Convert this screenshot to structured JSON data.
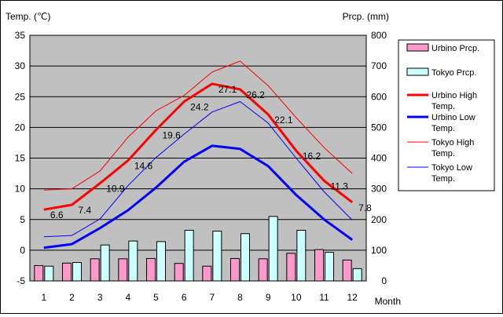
{
  "chart_data": {
    "type": "combo-bar-line",
    "categories": [
      "1",
      "2",
      "3",
      "4",
      "5",
      "6",
      "7",
      "8",
      "9",
      "10",
      "11",
      "12"
    ],
    "xlabel": "Month",
    "left_axis": {
      "label": "Temp. (℃)",
      "min": -5,
      "max": 35,
      "step": 5
    },
    "right_axis": {
      "label": "Prcp. (mm)",
      "min": 0,
      "max": 800,
      "step": 100
    },
    "bar_series": [
      {
        "name": "Urbino Prcp.",
        "color": "#ff99cc",
        "values": [
          50,
          58,
          72,
          72,
          73,
          57,
          48,
          73,
          72,
          90,
          102,
          68
        ]
      },
      {
        "name": "Tokyo Prcp.",
        "color": "#ccffff",
        "values": [
          48,
          60,
          117,
          130,
          128,
          165,
          162,
          154,
          210,
          165,
          93,
          40
        ]
      }
    ],
    "line_series": [
      {
        "name": "Urbino High Temp.",
        "color": "#ff0000",
        "width": 3,
        "values": [
          6.6,
          7.4,
          10.9,
          14.6,
          19.6,
          24.2,
          27.1,
          26.2,
          22.1,
          16.2,
          11.3,
          7.8
        ],
        "labels": [
          "6.6",
          "7.4",
          "10.9",
          "14.6",
          "19.6",
          "24.2",
          "27.1",
          "26.2",
          "22.1",
          "16.2",
          "11.3",
          "7.8"
        ]
      },
      {
        "name": "Urbino Low Temp.",
        "color": "#0000ff",
        "width": 3,
        "values": [
          0.4,
          1.0,
          3.6,
          6.5,
          10.2,
          14.4,
          17.0,
          16.5,
          13.7,
          9.0,
          5.0,
          1.7
        ]
      },
      {
        "name": "Tokyo High Temp.",
        "color": "#ff0000",
        "width": 1,
        "values": [
          9.8,
          10.0,
          12.9,
          18.4,
          22.7,
          25.2,
          29.0,
          30.8,
          26.8,
          21.6,
          16.7,
          12.5
        ]
      },
      {
        "name": "Tokyo Low Temp.",
        "color": "#0000ff",
        "width": 1,
        "values": [
          2.2,
          2.4,
          5.1,
          10.5,
          15.1,
          18.9,
          22.5,
          24.2,
          20.7,
          15.0,
          9.5,
          4.9
        ]
      }
    ],
    "legend": [
      {
        "label": "Urbino Prcp.",
        "kind": "bar",
        "color": "#ff99cc"
      },
      {
        "label": "Tokyo Prcp.",
        "kind": "bar",
        "color": "#ccffff"
      },
      {
        "label": "Urbino High Temp.",
        "kind": "line",
        "color": "#ff0000",
        "width": 3
      },
      {
        "label": "Urbino Low Temp.",
        "kind": "line",
        "color": "#0000ff",
        "width": 3
      },
      {
        "label": "Tokyo High Temp.",
        "kind": "line",
        "color": "#ff0000",
        "width": 1
      },
      {
        "label": "Tokyo Low Temp.",
        "kind": "line",
        "color": "#0000ff",
        "width": 1
      }
    ],
    "legend_position": "right",
    "plot_background": "#c0c0c0",
    "grid": true
  }
}
